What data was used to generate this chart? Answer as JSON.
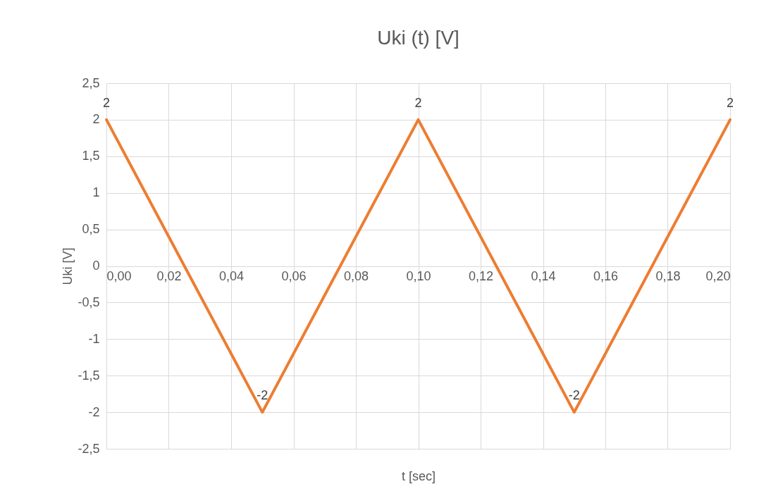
{
  "chart_data": {
    "type": "line",
    "title": "Uki (t) [V]",
    "xlabel": "t [sec]",
    "ylabel": "Uki [V]",
    "x": [
      0,
      0.05,
      0.1,
      0.15,
      0.2
    ],
    "series": [
      {
        "color": "#ed7d31",
        "values": [
          2,
          -2,
          2,
          -2,
          2
        ]
      }
    ],
    "data_labels": true,
    "xlim": [
      0,
      0.2
    ],
    "ylim": [
      -2.5,
      2.5
    ],
    "xticks": [
      {
        "value": 0,
        "label": "0,00"
      },
      {
        "value": 0.02,
        "label": "0,02"
      },
      {
        "value": 0.04,
        "label": "0,04"
      },
      {
        "value": 0.06,
        "label": "0,06"
      },
      {
        "value": 0.08,
        "label": "0,08"
      },
      {
        "value": 0.1,
        "label": "0,10"
      },
      {
        "value": 0.12,
        "label": "0,12"
      },
      {
        "value": 0.14,
        "label": "0,14"
      },
      {
        "value": 0.16,
        "label": "0,16"
      },
      {
        "value": 0.18,
        "label": "0,18"
      },
      {
        "value": 0.2,
        "label": "0,20"
      }
    ],
    "yticks": [
      {
        "value": -2.5,
        "label": "-2,5"
      },
      -2,
      {
        "value": -1.5,
        "label": "-1,5"
      },
      -1,
      {
        "value": -0.5,
        "label": "-0,5"
      },
      0,
      {
        "value": 0.5,
        "label": "0,5"
      },
      1,
      {
        "value": 1.5,
        "label": "1,5"
      },
      2,
      {
        "value": 2.5,
        "label": "2,5"
      }
    ],
    "grid": true,
    "marker": "none",
    "line_style": "solid"
  }
}
